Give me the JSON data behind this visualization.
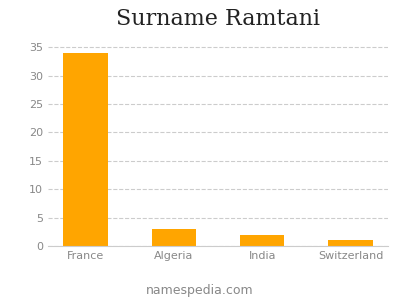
{
  "title": "Surname Ramtani",
  "categories": [
    "France",
    "Algeria",
    "India",
    "Switzerland"
  ],
  "values": [
    34,
    3,
    2,
    1
  ],
  "bar_color": "#FFA500",
  "background_color": "#ffffff",
  "ylim": [
    0,
    37
  ],
  "yticks": [
    0,
    5,
    10,
    15,
    20,
    25,
    30,
    35
  ],
  "grid_color": "#cccccc",
  "footer_text": "namespedia.com",
  "title_fontsize": 16,
  "tick_fontsize": 8,
  "footer_fontsize": 9
}
